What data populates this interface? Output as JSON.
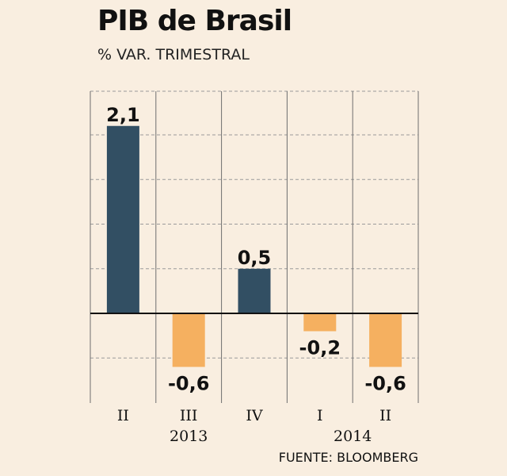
{
  "title": "PIB de Brasil",
  "subtitle": "% VAR. TRIMESTRAL",
  "source": "FUENTE: BLOOMBERG",
  "chart_data": {
    "type": "bar",
    "title": "PIB de Brasil",
    "subtitle": "% VAR. TRIMESTRAL",
    "categories": [
      "II",
      "III",
      "IV",
      "I",
      "II"
    ],
    "values": [
      2.1,
      -0.6,
      0.5,
      -0.2,
      -0.6
    ],
    "value_labels": [
      "2,1",
      "-0,6",
      "0,5",
      "-0,2",
      "-0,6"
    ],
    "years": [
      {
        "label": "2013",
        "start": 0,
        "end": 2
      },
      {
        "label": "2014",
        "start": 3,
        "end": 4
      }
    ],
    "ylim": [
      -1.0,
      2.5
    ],
    "grid": true,
    "colors": {
      "positive": "#324f63",
      "negative": "#f5b060"
    }
  }
}
